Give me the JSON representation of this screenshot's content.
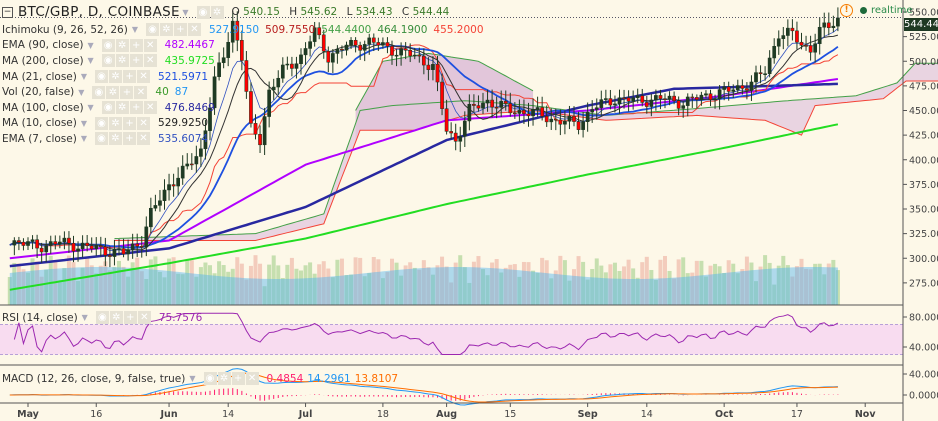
{
  "header": {
    "symbol": "BTC/GBP, D, COINBASE",
    "ohlc": {
      "o_label": "O",
      "o": "540.15",
      "h_label": "H",
      "h": "545.62",
      "l_label": "L",
      "l": "534.43",
      "c_label": "C",
      "c": "544.44"
    },
    "realtime": "realtime",
    "last_price": "544.44"
  },
  "indicators": [
    {
      "name": "Ichimoku (9, 26, 52, 26)",
      "values": [
        {
          "v": "527.9150",
          "color": "#2196f3"
        },
        {
          "v": "509.7550",
          "color": "#b71c1c"
        },
        {
          "v": "544.4400",
          "color": "#43a047"
        },
        {
          "v": "464.1900",
          "color": "#388e3c"
        },
        {
          "v": "455.2000",
          "color": "#f44336"
        }
      ]
    },
    {
      "name": "EMA (90, close)",
      "values": [
        {
          "v": "482.4467",
          "color": "#b000ff"
        }
      ]
    },
    {
      "name": "MA (200, close)",
      "values": [
        {
          "v": "435.9725",
          "color": "#22dd22"
        }
      ]
    },
    {
      "name": "MA (21, close)",
      "values": [
        {
          "v": "521.5971",
          "color": "#1e50e0"
        }
      ]
    },
    {
      "name": "Vol (20, false)",
      "values": [
        {
          "v": "40",
          "color": "#3a9a2a"
        },
        {
          "v": "87",
          "color": "#2196f3"
        }
      ]
    },
    {
      "name": "MA (100, close)",
      "values": [
        {
          "v": "476.8469",
          "color": "#2828a0"
        }
      ]
    },
    {
      "name": "MA (10, close)",
      "values": [
        {
          "v": "529.9250",
          "color": "#222222"
        }
      ]
    },
    {
      "name": "EMA (7, close)",
      "values": [
        {
          "v": "535.6074",
          "color": "#3050c0"
        }
      ]
    }
  ],
  "rsi": {
    "name": "RSI (14, close)",
    "value": "75.7576",
    "color": "#9c27b0",
    "ticks": [
      "80.0000",
      "40.0000"
    ]
  },
  "macd": {
    "name": "MACD (12, 26, close, 9, false, true)",
    "values": [
      {
        "v": "0.4854",
        "color": "#ff1e6e"
      },
      {
        "v": "14.2961",
        "color": "#2196f3"
      },
      {
        "v": "13.8107",
        "color": "#ff6d00"
      }
    ],
    "ticks": [
      "40.0000",
      "0.0000"
    ]
  },
  "colors": {
    "background": "#fdf8e8",
    "up": "#1f3a23",
    "down": "#ff0000"
  },
  "chart_data": {
    "type": "candlestick",
    "price_axis": {
      "ticks": [
        "550.00",
        "525.00",
        "500.00",
        "475.00",
        "450.00",
        "425.00",
        "400.00",
        "375.00",
        "350.00",
        "325.00",
        "300.00",
        "275.00"
      ],
      "range": [
        250,
        555
      ]
    },
    "time_axis": {
      "ticks": [
        [
          "May",
          "2016-05-01"
        ],
        [
          "16",
          "2016-05-16"
        ],
        [
          "Jun",
          "2016-06-01"
        ],
        [
          "14",
          "2016-06-14"
        ],
        [
          "Jul",
          "2016-07-01"
        ],
        [
          "18",
          "2016-07-18"
        ],
        [
          "Aug",
          "2016-08-01"
        ],
        [
          "15",
          "2016-08-15"
        ],
        [
          "Sep",
          "2016-09-01"
        ],
        [
          "14",
          "2016-09-14"
        ],
        [
          "Oct",
          "2016-10-01"
        ],
        [
          "17",
          "2016-10-17"
        ],
        [
          "Nov",
          "2016-11-01"
        ]
      ]
    },
    "close_keypoints": [
      [
        "2016-04-27",
        318
      ],
      [
        "2016-05-03",
        312
      ],
      [
        "2016-05-08",
        316
      ],
      [
        "2016-05-13",
        312
      ],
      [
        "2016-05-18",
        308
      ],
      [
        "2016-05-22",
        305
      ],
      [
        "2016-05-26",
        318
      ],
      [
        "2016-05-28",
        345
      ],
      [
        "2016-06-01",
        375
      ],
      [
        "2016-06-05",
        392
      ],
      [
        "2016-06-08",
        410
      ],
      [
        "2016-06-11",
        480
      ],
      [
        "2016-06-13",
        505
      ],
      [
        "2016-06-15",
        540
      ],
      [
        "2016-06-17",
        505
      ],
      [
        "2016-06-19",
        430
      ],
      [
        "2016-06-21",
        420
      ],
      [
        "2016-06-23",
        470
      ],
      [
        "2016-06-26",
        490
      ],
      [
        "2016-06-30",
        505
      ],
      [
        "2016-07-03",
        530
      ],
      [
        "2016-07-06",
        505
      ],
      [
        "2016-07-10",
        515
      ],
      [
        "2016-07-15",
        520
      ],
      [
        "2016-07-20",
        512
      ],
      [
        "2016-07-25",
        505
      ],
      [
        "2016-07-29",
        495
      ],
      [
        "2016-08-01",
        430
      ],
      [
        "2016-08-03",
        420
      ],
      [
        "2016-08-06",
        450
      ],
      [
        "2016-08-10",
        460
      ],
      [
        "2016-08-15",
        450
      ],
      [
        "2016-08-20",
        448
      ],
      [
        "2016-08-25",
        440
      ],
      [
        "2016-08-30",
        436
      ],
      [
        "2016-09-02",
        452
      ],
      [
        "2016-09-07",
        462
      ],
      [
        "2016-09-12",
        460
      ],
      [
        "2016-09-17",
        462
      ],
      [
        "2016-09-22",
        458
      ],
      [
        "2016-09-27",
        465
      ],
      [
        "2016-10-02",
        470
      ],
      [
        "2016-10-07",
        478
      ],
      [
        "2016-10-10",
        490
      ],
      [
        "2016-10-13",
        528
      ],
      [
        "2016-10-16",
        527
      ],
      [
        "2016-10-18",
        518
      ],
      [
        "2016-10-20",
        512
      ],
      [
        "2016-10-22",
        530
      ],
      [
        "2016-10-24",
        536
      ],
      [
        "2016-10-26",
        544
      ]
    ],
    "ema90": [
      [
        "2016-04-27",
        300
      ],
      [
        "2016-06-01",
        318
      ],
      [
        "2016-07-01",
        395
      ],
      [
        "2016-08-01",
        440
      ],
      [
        "2016-09-01",
        450
      ],
      [
        "2016-10-01",
        465
      ],
      [
        "2016-10-26",
        482
      ]
    ],
    "ma100": [
      [
        "2016-04-27",
        292
      ],
      [
        "2016-06-01",
        310
      ],
      [
        "2016-07-01",
        352
      ],
      [
        "2016-08-01",
        420
      ],
      [
        "2016-09-01",
        455
      ],
      [
        "2016-09-20",
        472
      ],
      [
        "2016-10-26",
        477
      ]
    ],
    "ma200": [
      [
        "2016-04-27",
        268
      ],
      [
        "2016-06-01",
        295
      ],
      [
        "2016-07-01",
        320
      ],
      [
        "2016-08-01",
        355
      ],
      [
        "2016-09-01",
        385
      ],
      [
        "2016-10-01",
        412
      ],
      [
        "2016-10-26",
        436
      ]
    ],
    "ichimoku_span_a": [
      [
        "2016-05-20",
        320
      ],
      [
        "2016-06-20",
        325
      ],
      [
        "2016-07-05",
        345
      ],
      [
        "2016-07-13",
        450
      ],
      [
        "2016-07-20",
        455
      ],
      [
        "2016-08-05",
        460
      ],
      [
        "2016-08-20",
        455
      ],
      [
        "2016-09-05",
        445
      ],
      [
        "2016-09-25",
        452
      ],
      [
        "2016-10-15",
        460
      ],
      [
        "2016-10-30",
        465
      ],
      [
        "2016-11-08",
        478
      ],
      [
        "2016-11-12",
        498
      ],
      [
        "2016-11-20",
        498
      ]
    ],
    "ichimoku_span_b": [
      [
        "2016-05-20",
        318
      ],
      [
        "2016-06-20",
        318
      ],
      [
        "2016-07-05",
        335
      ],
      [
        "2016-07-13",
        430
      ],
      [
        "2016-07-25",
        430
      ],
      [
        "2016-08-05",
        445
      ],
      [
        "2016-08-20",
        450
      ],
      [
        "2016-09-05",
        440
      ],
      [
        "2016-09-25",
        445
      ],
      [
        "2016-10-10",
        440
      ],
      [
        "2016-10-18",
        425
      ],
      [
        "2016-10-21",
        455
      ],
      [
        "2016-11-05",
        462
      ],
      [
        "2016-11-10",
        480
      ],
      [
        "2016-11-20",
        480
      ]
    ],
    "ichimoku_cloud_top": [
      [
        "2016-07-12",
        450
      ],
      [
        "2016-07-18",
        500
      ],
      [
        "2016-07-28",
        508
      ],
      [
        "2016-08-08",
        500
      ],
      [
        "2016-08-20",
        470
      ]
    ]
  }
}
